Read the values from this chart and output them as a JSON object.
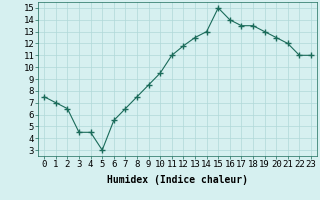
{
  "x": [
    0,
    1,
    2,
    3,
    4,
    5,
    6,
    7,
    8,
    9,
    10,
    11,
    12,
    13,
    14,
    15,
    16,
    17,
    18,
    19,
    20,
    21,
    22,
    23
  ],
  "y": [
    7.5,
    7.0,
    6.5,
    4.5,
    4.5,
    3.0,
    5.5,
    6.5,
    7.5,
    8.5,
    9.5,
    11.0,
    11.8,
    12.5,
    13.0,
    15.0,
    14.0,
    13.5,
    13.5,
    13.0,
    12.5,
    12.0,
    11.0,
    11.0
  ],
  "line_color": "#1a6b5a",
  "marker": "+",
  "marker_size": 4,
  "xlabel": "Humidex (Indice chaleur)",
  "xlim": [
    -0.5,
    23.5
  ],
  "ylim": [
    2.5,
    15.5
  ],
  "yticks": [
    3,
    4,
    5,
    6,
    7,
    8,
    9,
    10,
    11,
    12,
    13,
    14,
    15
  ],
  "xticks": [
    0,
    1,
    2,
    3,
    4,
    5,
    6,
    7,
    8,
    9,
    10,
    11,
    12,
    13,
    14,
    15,
    16,
    17,
    18,
    19,
    20,
    21,
    22,
    23
  ],
  "bg_color": "#d6f0f0",
  "grid_color": "#b0d8d8",
  "label_fontsize": 7,
  "tick_fontsize": 6.5
}
